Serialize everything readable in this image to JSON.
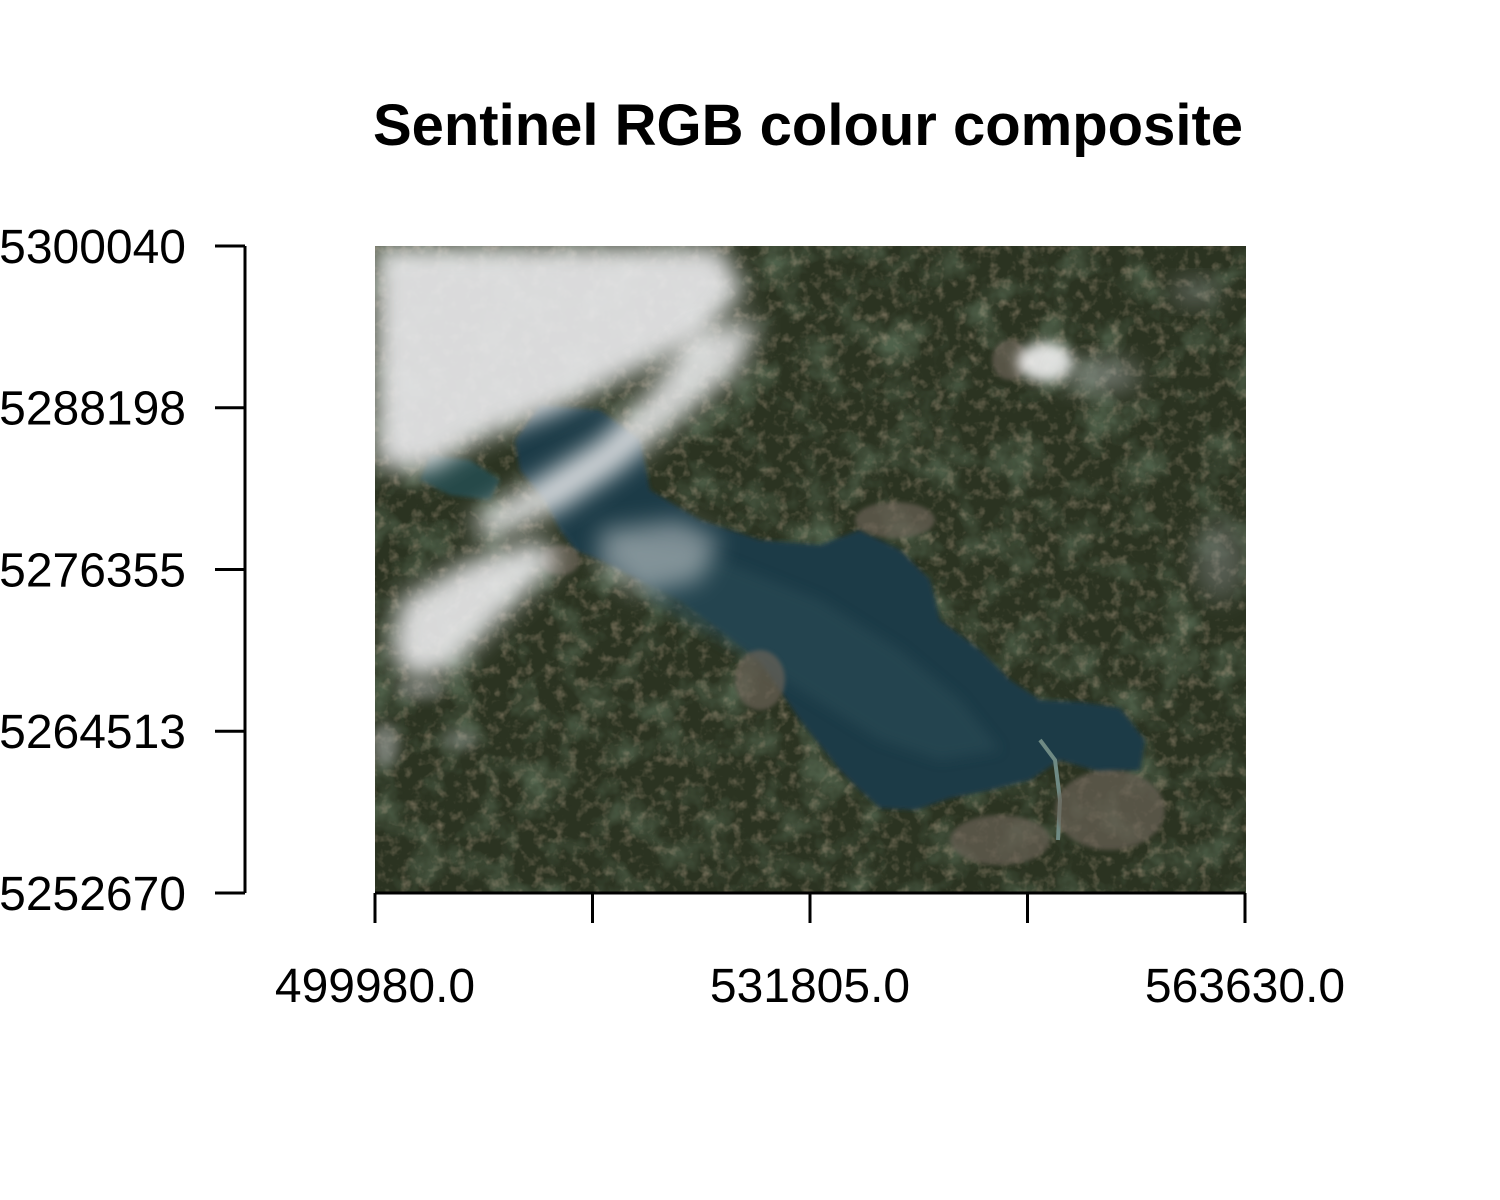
{
  "chart_data": {
    "type": "raster-image",
    "title": "Sentinel RGB colour composite",
    "xlabel": "",
    "ylabel": "",
    "x_axis": {
      "ticks": [
        499980.0,
        515892.5,
        531805.0,
        547717.5,
        563630.0
      ],
      "tick_labels": [
        "499980.0",
        "",
        "531805.0",
        "",
        "563630.0"
      ]
    },
    "y_axis": {
      "ticks": [
        5252670,
        5264513,
        5276355,
        5288198,
        5300040
      ],
      "tick_labels": [
        "5252670",
        "5264513",
        "5276355",
        "5288198",
        "5300040"
      ]
    },
    "xlim": [
      499980.0,
      563630.0
    ],
    "ylim": [
      5252670,
      5300040
    ],
    "colors": {
      "land": "#2a3420",
      "lake": "#1d3a46",
      "cloud": "#e8e8ea",
      "urban": "#6b6256"
    }
  }
}
